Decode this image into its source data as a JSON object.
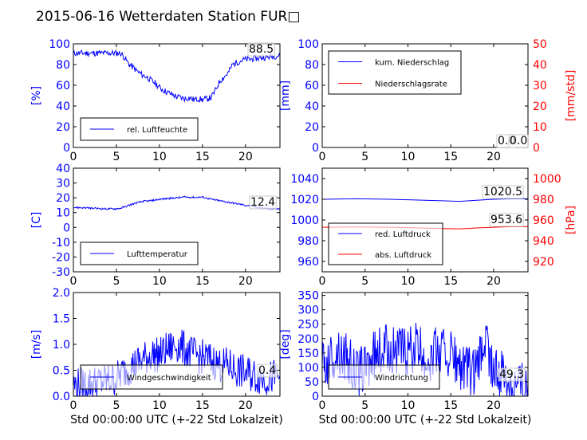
{
  "title": "2015-06-16 Wetterdaten Station FUR□",
  "colors": {
    "blue": "#0000ff",
    "red": "#ff0000",
    "light_blue": "#8080ff"
  },
  "chart_data": [
    {
      "id": "humidity",
      "type": "line",
      "ylabel_left": "[%]",
      "ylim_left": [
        0,
        100
      ],
      "yticks_left": [
        0,
        20,
        40,
        60,
        80,
        100
      ],
      "xlim": [
        0,
        24
      ],
      "xticks": [
        0,
        5,
        10,
        15,
        20
      ],
      "legend": [
        "rel. Luftfeuchte"
      ],
      "value_label": "88.5",
      "series": [
        {
          "name": "rel. Luftfeuchte",
          "color": "#0000ff",
          "axis": "left",
          "x": [
            0,
            5.5,
            6,
            6.5,
            7,
            7.5,
            8,
            8.5,
            9,
            9.5,
            10,
            10.5,
            11,
            11.5,
            12,
            12.5,
            13,
            13.5,
            14,
            14.5,
            15,
            15.5,
            16,
            16.5,
            17,
            17.5,
            18,
            18.5,
            19,
            19.5,
            20,
            20.5,
            21,
            21.5,
            22,
            22.5,
            23,
            24
          ],
          "y": [
            91,
            91,
            86,
            80,
            77,
            73,
            70,
            68,
            65,
            62,
            58,
            55,
            53,
            51,
            49,
            48,
            47,
            48,
            46,
            47,
            46,
            47,
            48,
            55,
            64,
            68,
            72,
            80,
            82,
            84,
            85,
            85,
            86,
            86,
            87,
            87,
            88,
            88.5
          ],
          "noise": 3
        }
      ]
    },
    {
      "id": "precipitation",
      "type": "line",
      "ylabel_left": "[mm]",
      "ylabel_right": "[mm/std]",
      "ylim_left": [
        0,
        100
      ],
      "yticks_left": [
        0,
        20,
        40,
        60,
        80,
        100
      ],
      "ylim_right": [
        0,
        50
      ],
      "yticks_right": [
        0,
        10,
        20,
        30,
        40,
        50
      ],
      "xlim": [
        0,
        24
      ],
      "xticks": [
        0,
        5,
        10,
        15,
        20
      ],
      "legend": [
        "kum. Niederschlag",
        "Niederschlagsrate"
      ],
      "value_label": "0.0",
      "value_label_2": "0.0",
      "series": [
        {
          "name": "kum. Niederschlag",
          "color": "#0000ff",
          "axis": "left",
          "x": [
            0,
            24
          ],
          "y": [
            0,
            0
          ]
        },
        {
          "name": "Niederschlagsrate",
          "color": "#ff0000",
          "axis": "right",
          "x": [
            0,
            24
          ],
          "y": [
            0,
            0
          ]
        }
      ]
    },
    {
      "id": "temperature",
      "type": "line",
      "ylabel_left": "[C]",
      "ylim_left": [
        -30,
        40
      ],
      "yticks_left": [
        -30,
        -20,
        -10,
        0,
        10,
        20,
        30,
        40
      ],
      "xlim": [
        0,
        24
      ],
      "xticks": [
        0,
        5,
        10,
        15,
        20
      ],
      "legend": [
        "Lufttemperatur"
      ],
      "value_label": "12.4",
      "series": [
        {
          "name": "Lufttemperatur",
          "color": "#0000ff",
          "axis": "left",
          "x": [
            0,
            1,
            2,
            3,
            4,
            5,
            5.5,
            6,
            7,
            8,
            9,
            10,
            11,
            12,
            13,
            14,
            15,
            16,
            17,
            18,
            19,
            20,
            21,
            22,
            23,
            24
          ],
          "y": [
            13.5,
            13.3,
            13,
            12.7,
            12.5,
            12.6,
            13,
            14,
            16,
            17.5,
            18,
            19,
            19.5,
            20,
            20.5,
            20.3,
            20.5,
            19,
            18,
            17,
            16,
            15,
            14,
            13,
            12.6,
            12.4
          ],
          "noise": 0.6
        }
      ]
    },
    {
      "id": "pressure",
      "type": "line",
      "ylabel_right": "[hPa]",
      "ylim_left": [
        950,
        1050
      ],
      "yticks_left": [
        960,
        980,
        1000,
        1020,
        1040
      ],
      "ylim_right": [
        910,
        1010
      ],
      "yticks_right": [
        920,
        940,
        960,
        980,
        1000
      ],
      "xlim": [
        0,
        24
      ],
      "xticks": [
        0,
        5,
        10,
        15,
        20
      ],
      "legend": [
        "red. Luftdruck",
        "abs. Luftdruck"
      ],
      "value_label": "1020.5",
      "value_label_2": "953.6",
      "series": [
        {
          "name": "red. Luftdruck",
          "color": "#0000ff",
          "axis": "left",
          "x": [
            0,
            4,
            8,
            12,
            14,
            16,
            18,
            20,
            22,
            24
          ],
          "y": [
            1020,
            1020.5,
            1020,
            1019,
            1018.5,
            1018,
            1019,
            1020,
            1020.5,
            1020.5
          ]
        },
        {
          "name": "abs. Luftdruck",
          "color": "#ff0000",
          "axis": "right",
          "x": [
            0,
            4,
            8,
            12,
            14,
            16,
            18,
            20,
            22,
            24
          ],
          "y": [
            953,
            953.3,
            953,
            952.2,
            951.8,
            951.5,
            952.3,
            953,
            953.5,
            953.6
          ]
        }
      ]
    },
    {
      "id": "windspeed",
      "type": "line",
      "ylabel_left": "[m/s]",
      "ylim_left": [
        0,
        2
      ],
      "yticks_left": [
        "0.0",
        "0.5",
        "1.0",
        "1.5",
        "2.0"
      ],
      "xlim": [
        0,
        24
      ],
      "xticks": [
        0,
        5,
        10,
        15,
        20
      ],
      "xlabel": "Std 00:00:00 UTC (+-22 Std Lokalzeit)",
      "legend": [
        "Windgeschwindigkeit"
      ],
      "value_label": "0.4",
      "series": [
        {
          "name": "Windgeschwindigkeit",
          "color": "#0000ff",
          "axis": "left",
          "x": [
            0,
            2,
            4,
            5,
            6,
            7,
            8,
            9,
            10,
            11,
            12,
            13,
            14,
            15,
            16,
            17,
            18,
            19,
            20,
            21,
            22,
            23,
            24
          ],
          "y": [
            0.2,
            0.25,
            0.3,
            0.35,
            0.5,
            0.6,
            0.7,
            0.8,
            0.8,
            0.9,
            1.0,
            0.9,
            0.8,
            0.75,
            0.7,
            0.6,
            0.6,
            0.5,
            0.45,
            0.4,
            0.35,
            0.35,
            0.4
          ],
          "noise": 0.35
        }
      ]
    },
    {
      "id": "winddirection",
      "type": "line",
      "ylabel_left": "[deg]",
      "ylim_left": [
        0,
        360
      ],
      "yticks_left": [
        0,
        50,
        100,
        150,
        200,
        250,
        300,
        350
      ],
      "xlim": [
        0,
        24
      ],
      "xticks": [
        0,
        5,
        10,
        15,
        20
      ],
      "xlabel": "Std 00:00:00 UTC (+-22 Std Lokalzeit)",
      "legend": [
        "Windrichtung"
      ],
      "value_label": "49.3",
      "series": [
        {
          "name": "Windrichtung",
          "color": "#0000ff",
          "axis": "left",
          "x": [
            0,
            1,
            2,
            3,
            4,
            5,
            6,
            7,
            8,
            9,
            10,
            11,
            12,
            13,
            14,
            15,
            16,
            17,
            18,
            19,
            20,
            21,
            22,
            23,
            24
          ],
          "y": [
            100,
            130,
            160,
            120,
            80,
            100,
            140,
            160,
            170,
            160,
            150,
            170,
            130,
            150,
            160,
            150,
            100,
            90,
            80,
            200,
            80,
            70,
            60,
            50,
            49.3
          ],
          "noise": 90
        }
      ]
    }
  ]
}
